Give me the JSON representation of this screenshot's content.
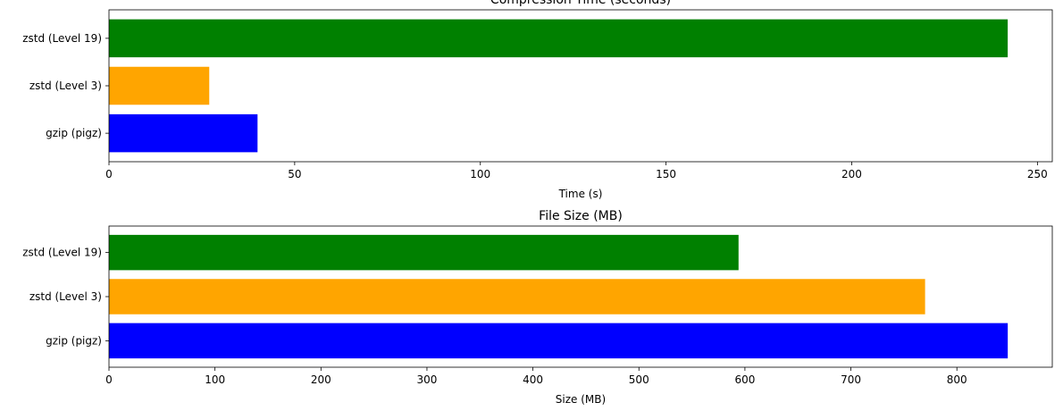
{
  "chart_data": [
    {
      "type": "bar",
      "orientation": "horizontal",
      "title": "Compression Time (seconds)",
      "xlabel": "Time (s)",
      "ylabel": "",
      "categories": [
        "gzip (pigz)",
        "zstd (Level 3)",
        "zstd (Level 19)"
      ],
      "values": [
        40,
        27,
        242
      ],
      "colors": [
        "#0000ff",
        "#ffa500",
        "#008000"
      ],
      "xlim": [
        0,
        254
      ],
      "xticks": [
        0,
        50,
        100,
        150,
        200,
        250
      ],
      "grid": false
    },
    {
      "type": "bar",
      "orientation": "horizontal",
      "title": "File Size (MB)",
      "xlabel": "Size (MB)",
      "ylabel": "",
      "categories": [
        "gzip (pigz)",
        "zstd (Level 3)",
        "zstd (Level 19)"
      ],
      "values": [
        848,
        770,
        594
      ],
      "colors": [
        "#0000ff",
        "#ffa500",
        "#008000"
      ],
      "xlim": [
        0,
        890
      ],
      "xticks": [
        0,
        100,
        200,
        300,
        400,
        500,
        600,
        700,
        800
      ],
      "grid": false
    }
  ]
}
